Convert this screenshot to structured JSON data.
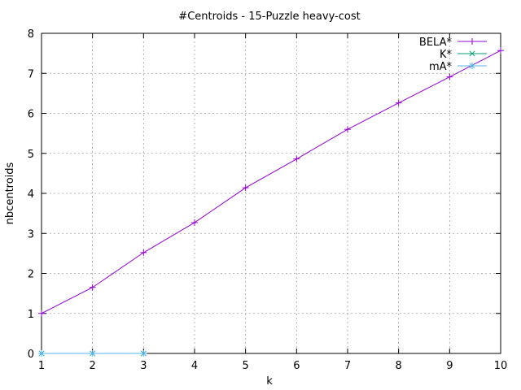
{
  "chart_data": {
    "type": "line",
    "title": "#Centroids - 15-Puzzle heavy-cost",
    "xlabel": "k",
    "ylabel": "nbcentroids",
    "xlim": [
      1,
      10
    ],
    "ylim": [
      0,
      8
    ],
    "xticks": [
      1,
      2,
      3,
      4,
      5,
      6,
      7,
      8,
      9,
      10
    ],
    "yticks": [
      0,
      1,
      2,
      3,
      4,
      5,
      6,
      7,
      8
    ],
    "grid": true,
    "legend_position": "top-right",
    "series": [
      {
        "name": "BELA*",
        "color": "#9400d3",
        "marker": "plus",
        "x": [
          1,
          2,
          3,
          4,
          5,
          6,
          7,
          8,
          9,
          10
        ],
        "y": [
          1.0,
          1.65,
          2.52,
          3.27,
          4.14,
          4.86,
          5.6,
          6.26,
          6.91,
          7.57
        ]
      },
      {
        "name": "K*",
        "color": "#009e73",
        "marker": "cross",
        "x": [
          1,
          2,
          3
        ],
        "y": [
          0,
          0,
          0
        ]
      },
      {
        "name": "mA*",
        "color": "#56b4e9",
        "marker": "star",
        "x": [
          1,
          2,
          3
        ],
        "y": [
          0,
          0,
          0
        ]
      }
    ]
  }
}
